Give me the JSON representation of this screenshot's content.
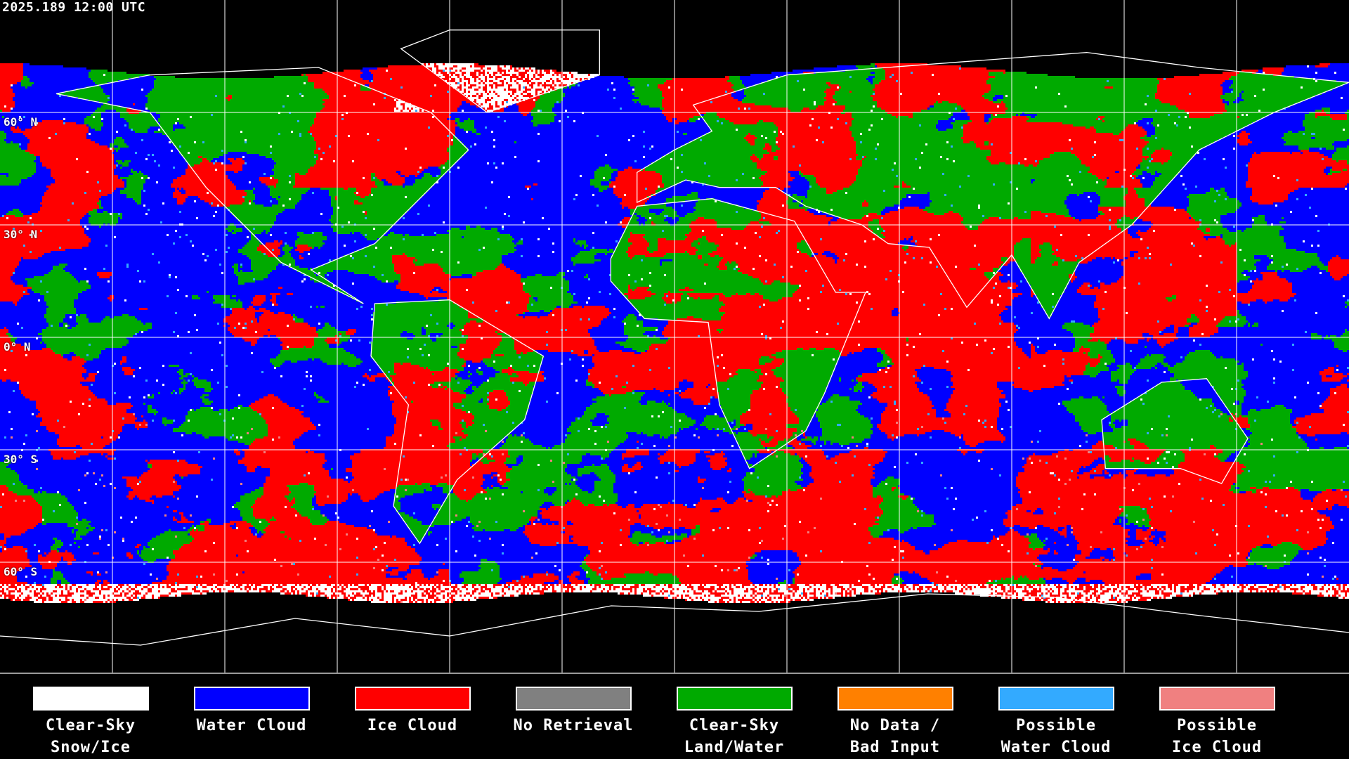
{
  "title": "2025.189 12:00 UTC",
  "lat_labels": [
    "60° N",
    "30° N",
    "0° N",
    "30° S",
    "60° S"
  ],
  "legend": [
    {
      "line1": "Clear-Sky",
      "line2": "Snow/Ice",
      "color": "#ffffff"
    },
    {
      "line1": "Water Cloud",
      "line2": "",
      "color": "#0000ff"
    },
    {
      "line1": "Ice Cloud",
      "line2": "",
      "color": "#ff0000"
    },
    {
      "line1": "No Retrieval",
      "line2": "",
      "color": "#808080"
    },
    {
      "line1": "Clear-Sky",
      "line2": "Land/Water",
      "color": "#00aa00"
    },
    {
      "line1": "No Data /",
      "line2": "Bad Input",
      "color": "#ff8000"
    },
    {
      "line1": "Possible",
      "line2": "Water Cloud",
      "color": "#33aaff"
    },
    {
      "line1": "Possible",
      "line2": "Ice Cloud",
      "color": "#f08080"
    }
  ],
  "map": {
    "projection": "equirectangular",
    "graticule_spacing_deg": 30,
    "background": "#000000",
    "coastline_color": "#ffffff"
  }
}
